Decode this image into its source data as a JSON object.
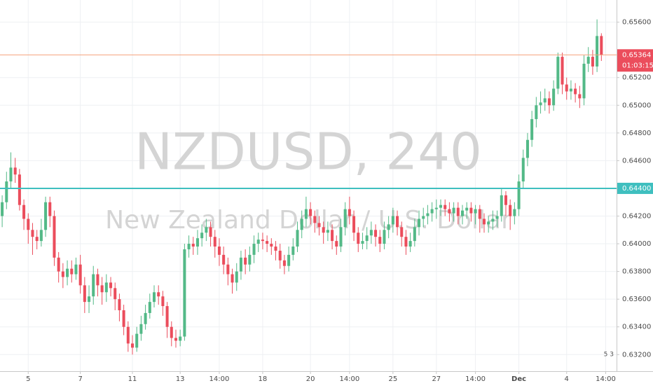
{
  "chart_data": {
    "type": "candlestick",
    "title": "NZDUSD, 240",
    "subtitle": "New Zealand Dollar / U.S. Dollar",
    "up_color": "#53b987",
    "down_color": "#eb4d5c",
    "grid": true,
    "xlim": [
      -0.5,
      141.5
    ],
    "xticks": [
      {
        "value": 6,
        "label": "5"
      },
      {
        "value": 18,
        "label": "7"
      },
      {
        "value": 30,
        "label": "11"
      },
      {
        "value": 41,
        "label": "13"
      },
      {
        "value": 50,
        "label": "14:00"
      },
      {
        "value": 60,
        "label": "18"
      },
      {
        "value": 71,
        "label": "20"
      },
      {
        "value": 80,
        "label": "14:00"
      },
      {
        "value": 90,
        "label": "25"
      },
      {
        "value": 100,
        "label": "27"
      },
      {
        "value": 109,
        "label": "14:00"
      },
      {
        "value": 119,
        "label": "Dec"
      },
      {
        "value": 130,
        "label": "4"
      },
      {
        "value": 139,
        "label": "14:00"
      }
    ],
    "ylim": [
      0.6308,
      0.6576
    ],
    "yticks": [
      {
        "value": 0.632,
        "label": "0.63200"
      },
      {
        "value": 0.634,
        "label": "0.63400"
      },
      {
        "value": 0.636,
        "label": "0.63600"
      },
      {
        "value": 0.638,
        "label": "0.63800"
      },
      {
        "value": 0.64,
        "label": "0.64000"
      },
      {
        "value": 0.642,
        "label": "0.64200"
      },
      {
        "value": 0.646,
        "label": "0.64600"
      },
      {
        "value": 0.648,
        "label": "0.64800"
      },
      {
        "value": 0.65,
        "label": "0.65000"
      },
      {
        "value": 0.652,
        "label": "0.65200"
      },
      {
        "value": 0.656,
        "label": "0.65600"
      }
    ],
    "hlines": [
      {
        "value": 0.644,
        "label": "0.64400",
        "color": "#3fbfbf"
      }
    ],
    "last_price": {
      "value": 0.65364,
      "label": "0.65364",
      "countdown": "01:03:15",
      "color": "#eb4d5c",
      "line_color": "#f4a27c"
    },
    "badge": "5 3",
    "open": [
      0.642,
      0.643,
      0.6445,
      0.6455,
      0.645,
      0.6428,
      0.6418,
      0.641,
      0.6405,
      0.6402,
      0.641,
      0.643,
      0.642,
      0.639,
      0.638,
      0.6376,
      0.6382,
      0.6378,
      0.6385,
      0.637,
      0.6358,
      0.6362,
      0.6378,
      0.637,
      0.6365,
      0.6372,
      0.6368,
      0.636,
      0.6352,
      0.634,
      0.6328,
      0.6325,
      0.6335,
      0.6342,
      0.635,
      0.6358,
      0.6365,
      0.6362,
      0.6355,
      0.634,
      0.6332,
      0.633,
      0.6333,
      0.6396,
      0.64,
      0.6398,
      0.6404,
      0.6408,
      0.6412,
      0.6405,
      0.6398,
      0.6392,
      0.6385,
      0.6378,
      0.6372,
      0.638,
      0.639,
      0.6385,
      0.6392,
      0.64,
      0.6403,
      0.6402,
      0.64,
      0.6398,
      0.6395,
      0.6388,
      0.6384,
      0.6392,
      0.6398,
      0.641,
      0.6418,
      0.6425,
      0.642,
      0.6415,
      0.6412,
      0.6408,
      0.641,
      0.6402,
      0.6398,
      0.6412,
      0.6425,
      0.642,
      0.6408,
      0.64,
      0.6402,
      0.6406,
      0.641,
      0.6405,
      0.64,
      0.641,
      0.6414,
      0.642,
      0.6412,
      0.6405,
      0.6398,
      0.6402,
      0.6412,
      0.6418,
      0.642,
      0.6422,
      0.6425,
      0.6426,
      0.6428,
      0.6425,
      0.6422,
      0.6426,
      0.642,
      0.6424,
      0.6426,
      0.6422,
      0.6425,
      0.6418,
      0.6414,
      0.6416,
      0.6418,
      0.642,
      0.6435,
      0.6428,
      0.642,
      0.6425,
      0.6445,
      0.6462,
      0.6475,
      0.649,
      0.65,
      0.6502,
      0.6505,
      0.65,
      0.6512,
      0.6535,
      0.6515,
      0.651,
      0.6512,
      0.6508,
      0.6505,
      0.653,
      0.6535,
      0.6528,
      0.655
    ],
    "high": [
      0.6435,
      0.6452,
      0.6466,
      0.6462,
      0.6454,
      0.6432,
      0.6422,
      0.6415,
      0.641,
      0.6418,
      0.6434,
      0.6434,
      0.6424,
      0.6394,
      0.6386,
      0.6388,
      0.6388,
      0.639,
      0.6392,
      0.6376,
      0.637,
      0.6384,
      0.6382,
      0.6376,
      0.6378,
      0.6376,
      0.6372,
      0.6364,
      0.6356,
      0.6344,
      0.6334,
      0.634,
      0.6348,
      0.6356,
      0.6364,
      0.637,
      0.637,
      0.6366,
      0.6358,
      0.6344,
      0.6338,
      0.6338,
      0.64,
      0.6406,
      0.6405,
      0.641,
      0.6414,
      0.6418,
      0.6416,
      0.641,
      0.6404,
      0.6398,
      0.639,
      0.6382,
      0.6386,
      0.6395,
      0.6396,
      0.6398,
      0.6406,
      0.6408,
      0.6408,
      0.6406,
      0.6404,
      0.6402,
      0.64,
      0.6392,
      0.6398,
      0.6404,
      0.6416,
      0.6424,
      0.6434,
      0.643,
      0.6424,
      0.642,
      0.6416,
      0.6416,
      0.6414,
      0.6406,
      0.6418,
      0.643,
      0.6434,
      0.6424,
      0.6412,
      0.6408,
      0.6412,
      0.6416,
      0.6414,
      0.641,
      0.6416,
      0.642,
      0.6426,
      0.6424,
      0.6416,
      0.641,
      0.6408,
      0.6418,
      0.6424,
      0.6426,
      0.6428,
      0.643,
      0.6432,
      0.6432,
      0.6432,
      0.643,
      0.643,
      0.643,
      0.6428,
      0.643,
      0.643,
      0.6428,
      0.6428,
      0.6422,
      0.642,
      0.6424,
      0.6424,
      0.644,
      0.6438,
      0.6432,
      0.643,
      0.645,
      0.6468,
      0.648,
      0.6496,
      0.6506,
      0.651,
      0.6512,
      0.651,
      0.6518,
      0.6538,
      0.6538,
      0.652,
      0.6518,
      0.6516,
      0.6514,
      0.6536,
      0.6542,
      0.654,
      0.6562,
      0.6552
    ],
    "low": [
      0.6412,
      0.6425,
      0.644,
      0.6444,
      0.6424,
      0.641,
      0.64,
      0.6392,
      0.6396,
      0.6398,
      0.6405,
      0.6412,
      0.6384,
      0.6372,
      0.6368,
      0.637,
      0.6372,
      0.6374,
      0.6364,
      0.635,
      0.635,
      0.6356,
      0.6362,
      0.6356,
      0.6358,
      0.6362,
      0.6352,
      0.6344,
      0.6334,
      0.6322,
      0.632,
      0.6322,
      0.633,
      0.6338,
      0.6346,
      0.6354,
      0.6356,
      0.6348,
      0.6332,
      0.6326,
      0.6325,
      0.6326,
      0.633,
      0.639,
      0.6392,
      0.6392,
      0.6398,
      0.6402,
      0.6398,
      0.639,
      0.6384,
      0.6378,
      0.637,
      0.6364,
      0.6366,
      0.6374,
      0.6378,
      0.638,
      0.6386,
      0.6394,
      0.6396,
      0.6394,
      0.6392,
      0.6388,
      0.6382,
      0.6378,
      0.638,
      0.6388,
      0.6394,
      0.6404,
      0.6412,
      0.6414,
      0.6408,
      0.6406,
      0.64,
      0.6402,
      0.6396,
      0.6392,
      0.6394,
      0.6406,
      0.6414,
      0.6402,
      0.6394,
      0.6396,
      0.6396,
      0.64,
      0.6398,
      0.6394,
      0.6396,
      0.6404,
      0.6408,
      0.6406,
      0.6398,
      0.6392,
      0.6394,
      0.6398,
      0.6406,
      0.6412,
      0.6414,
      0.6416,
      0.6418,
      0.642,
      0.642,
      0.6416,
      0.6416,
      0.6414,
      0.6414,
      0.6418,
      0.6416,
      0.6414,
      0.6408,
      0.6408,
      0.6408,
      0.641,
      0.6412,
      0.6416,
      0.642,
      0.641,
      0.6414,
      0.642,
      0.644,
      0.6456,
      0.647,
      0.6484,
      0.6494,
      0.6496,
      0.6494,
      0.6496,
      0.6508,
      0.6508,
      0.6504,
      0.6504,
      0.6502,
      0.6498,
      0.65,
      0.6524,
      0.6522,
      0.6524,
      0.6532
    ],
    "close": [
      0.643,
      0.6445,
      0.6455,
      0.645,
      0.6428,
      0.6418,
      0.641,
      0.6405,
      0.6402,
      0.641,
      0.643,
      0.642,
      0.639,
      0.638,
      0.6376,
      0.6382,
      0.6378,
      0.6385,
      0.637,
      0.6358,
      0.6362,
      0.6378,
      0.637,
      0.6365,
      0.6372,
      0.6368,
      0.636,
      0.6352,
      0.634,
      0.6328,
      0.6325,
      0.6335,
      0.6342,
      0.635,
      0.6358,
      0.6365,
      0.6362,
      0.6355,
      0.634,
      0.6332,
      0.633,
      0.6333,
      0.6396,
      0.64,
      0.6398,
      0.6404,
      0.6408,
      0.6412,
      0.6405,
      0.6398,
      0.6392,
      0.6385,
      0.6378,
      0.6372,
      0.638,
      0.639,
      0.6385,
      0.6392,
      0.64,
      0.6403,
      0.6402,
      0.64,
      0.6398,
      0.6395,
      0.6388,
      0.6384,
      0.6392,
      0.6398,
      0.641,
      0.6418,
      0.6425,
      0.642,
      0.6415,
      0.6412,
      0.6408,
      0.641,
      0.6402,
      0.6398,
      0.6412,
      0.6425,
      0.642,
      0.6408,
      0.64,
      0.6402,
      0.6406,
      0.641,
      0.6405,
      0.64,
      0.641,
      0.6414,
      0.642,
      0.6412,
      0.6405,
      0.6398,
      0.6402,
      0.6412,
      0.6418,
      0.642,
      0.6422,
      0.6425,
      0.6426,
      0.6428,
      0.6425,
      0.6422,
      0.6426,
      0.642,
      0.6424,
      0.6426,
      0.6422,
      0.6425,
      0.6418,
      0.6414,
      0.6416,
      0.6418,
      0.642,
      0.6435,
      0.6428,
      0.642,
      0.6425,
      0.6445,
      0.6462,
      0.6475,
      0.649,
      0.65,
      0.6502,
      0.6505,
      0.65,
      0.6512,
      0.6535,
      0.6515,
      0.651,
      0.6512,
      0.6508,
      0.6505,
      0.653,
      0.6535,
      0.6528,
      0.655,
      0.65364
    ]
  }
}
